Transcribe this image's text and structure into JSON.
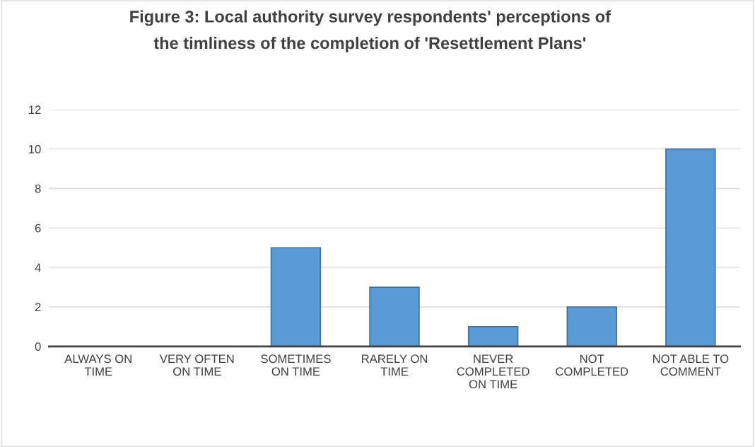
{
  "chart_data": {
    "type": "bar",
    "title": "Figure 3: Local authority survey respondents' perceptions of\nthe timliness of the completion of 'Resettlement Plans'",
    "categories": [
      "ALWAYS ON\nTIME",
      "VERY OFTEN\nON TIME",
      "SOMETIMES\nON TIME",
      "RARELY ON\nTIME",
      "NEVER\nCOMPLETED\nON TIME",
      "NOT\nCOMPLETED",
      "NOT ABLE TO\nCOMMENT"
    ],
    "values": [
      0,
      0,
      5,
      3,
      1,
      2,
      10
    ],
    "color": "#5b9bd5",
    "ylim": [
      0,
      12
    ],
    "yticks": [
      0,
      2,
      4,
      6,
      8,
      10,
      12
    ],
    "grid": "y",
    "legend": false
  }
}
